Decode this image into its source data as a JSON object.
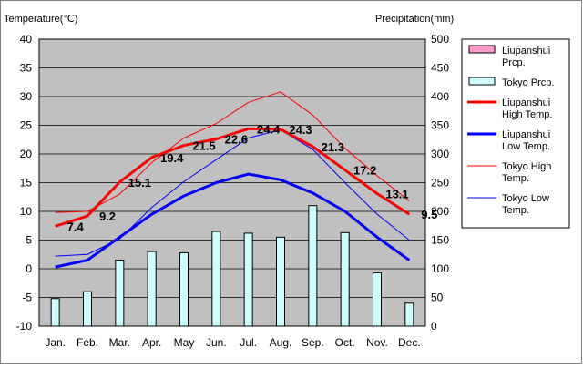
{
  "chart_data": {
    "type": "bar+line",
    "left_axis_title": "Temperature(℃)",
    "right_axis_title": "Precipitation(mm)",
    "categories": [
      "Jan.",
      "Feb.",
      "Mar.",
      "Apr.",
      "May",
      "Jun.",
      "Jul.",
      "Aug.",
      "Sep.",
      "Oct.",
      "Nov.",
      "Dec."
    ],
    "ylim_left": [
      -10,
      40
    ],
    "ylim_right": [
      0,
      500
    ],
    "left_ticks": [
      40,
      35,
      30,
      25,
      20,
      15,
      10,
      5,
      0,
      -5,
      -10
    ],
    "right_ticks": [
      500,
      450,
      400,
      350,
      300,
      250,
      200,
      150,
      100,
      50,
      0
    ],
    "grid": true,
    "plot_background": "#c0c0c0",
    "legend_placement": "right",
    "series": [
      {
        "key": "lps_prcp",
        "name": "Liupanshui Prcp.",
        "type": "bar",
        "color": "#ff99cc",
        "values": [
          null,
          null,
          null,
          null,
          null,
          null,
          null,
          null,
          null,
          null,
          null,
          null
        ]
      },
      {
        "key": "tky_prcp",
        "name": "Tokyo Prcp.",
        "type": "bar",
        "color": "#ccffff",
        "values": [
          48,
          60,
          115,
          130,
          128,
          165,
          162,
          155,
          210,
          163,
          93,
          40
        ]
      },
      {
        "key": "lps_high",
        "name": "Liupanshui High Temp.",
        "type": "line",
        "color": "#ff0000",
        "width": 3,
        "values": [
          7.4,
          9.2,
          15.1,
          19.4,
          21.5,
          22.6,
          24.4,
          24.3,
          21.3,
          17.2,
          13.1,
          9.5
        ]
      },
      {
        "key": "lps_low",
        "name": "Liupanshui Low Temp.",
        "type": "line",
        "color": "#0000ff",
        "width": 3,
        "values": [
          0.3,
          1.5,
          5.5,
          9.5,
          12.7,
          15,
          16.5,
          15.5,
          13.2,
          10,
          5.5,
          1.5
        ]
      },
      {
        "key": "tky_high",
        "name": "Tokyo High Temp.",
        "type": "line",
        "color": "#ff0000",
        "width": 1,
        "values": [
          9.8,
          10,
          13,
          18.5,
          22.8,
          25.3,
          29,
          30.8,
          26.8,
          21,
          16.2,
          11.8
        ]
      },
      {
        "key": "tky_low",
        "name": "Tokyo Low Temp.",
        "type": "line",
        "color": "#0000ff",
        "width": 1,
        "values": [
          2.2,
          2.5,
          5.2,
          10.7,
          15.2,
          19,
          22.8,
          24.2,
          20.8,
          15,
          9.5,
          5
        ]
      }
    ],
    "data_labels": {
      "series": "lps_high",
      "values": [
        "7.4",
        "9.2",
        "15.1",
        "19.4",
        "21.5",
        "22.6",
        "24.4",
        "24.3",
        "21.3",
        "17.2",
        "13.1",
        "9.5"
      ]
    },
    "legend": [
      {
        "kind": "box",
        "color": "#ff99cc",
        "lines": [
          "Liupanshui",
          "Prcp."
        ]
      },
      {
        "kind": "box",
        "color": "#ccffff",
        "lines": [
          "Tokyo Prcp."
        ]
      },
      {
        "kind": "line",
        "color": "#ff0000",
        "width": 3,
        "lines": [
          "Liupanshui",
          "High Temp."
        ]
      },
      {
        "kind": "line",
        "color": "#0000ff",
        "width": 3,
        "lines": [
          "Liupanshui",
          "Low Temp."
        ]
      },
      {
        "kind": "line",
        "color": "#ff0000",
        "width": 1,
        "lines": [
          "Tokyo High",
          "Temp."
        ]
      },
      {
        "kind": "line",
        "color": "#0000ff",
        "width": 1,
        "lines": [
          "Tokyo Low",
          "Temp."
        ]
      }
    ]
  }
}
